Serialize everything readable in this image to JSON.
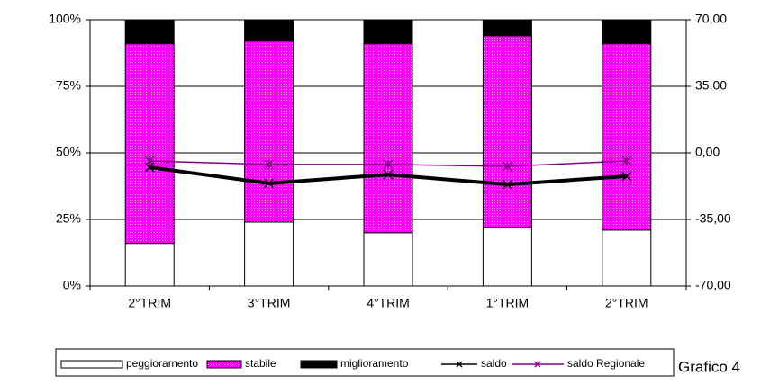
{
  "chart_data": {
    "type": "bar",
    "stacked": true,
    "annotation": "Grafico 4",
    "categories": [
      "2°TRIM",
      "3°TRIM",
      "4°TRIM",
      "1°TRIM",
      "2°TRIM"
    ],
    "series": [
      {
        "name": "peggioramento",
        "color": "#ffffff",
        "values": [
          16,
          24,
          20,
          22,
          21
        ]
      },
      {
        "name": "stabile",
        "color": "#ff00ff",
        "values": [
          75,
          68,
          71,
          72,
          70
        ]
      },
      {
        "name": "miglioramento",
        "color": "#000000",
        "values": [
          9,
          8,
          9,
          6,
          9
        ]
      },
      {
        "name": "saldo",
        "type": "line",
        "axis": "y2",
        "color": "#000000",
        "values": [
          -7.6,
          -16,
          -11.4,
          -16.6,
          -12.3
        ]
      },
      {
        "name": "saldo Regionale",
        "type": "line",
        "axis": "y2",
        "color": "#800080",
        "values": [
          -4.3,
          -6.1,
          -6.1,
          -7.1,
          -4.3
        ]
      }
    ],
    "ylim": [
      0,
      100
    ],
    "yticks": [
      {
        "value": 0,
        "label": "0%"
      },
      {
        "value": 25,
        "label": "25%"
      },
      {
        "value": 50,
        "label": "50%"
      },
      {
        "value": 75,
        "label": "75%"
      },
      {
        "value": 100,
        "label": "100%"
      }
    ],
    "y2lim": [
      -70,
      70
    ],
    "y2ticks": [
      {
        "value": -70,
        "label": "-70,00"
      },
      {
        "value": -35,
        "label": "-35,00"
      },
      {
        "value": 0,
        "label": "0,00"
      },
      {
        "value": 35,
        "label": "35,00"
      },
      {
        "value": 70,
        "label": "70,00"
      }
    ],
    "grid": true
  }
}
